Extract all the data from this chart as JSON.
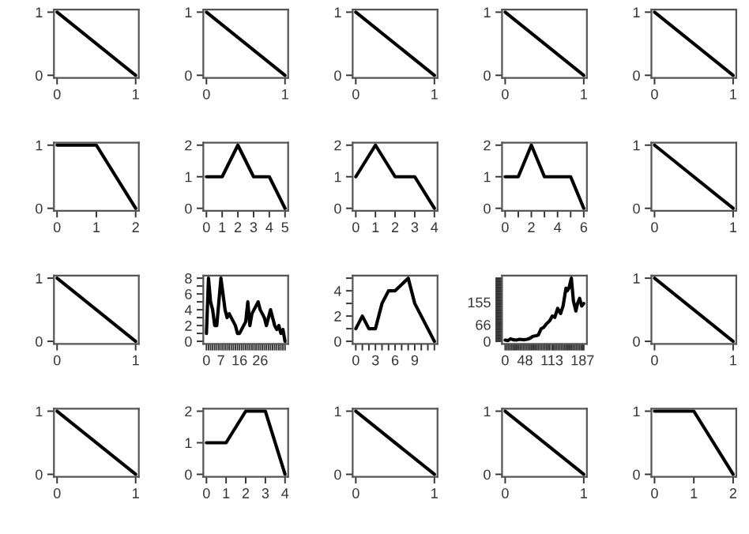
{
  "chart_data": [
    {
      "type": "line",
      "x": [
        0,
        1
      ],
      "values": [
        1,
        0
      ],
      "color": "#000000",
      "xlim": [
        -0.04,
        1.04
      ],
      "ylim": [
        -0.04,
        1.04
      ],
      "xticks": [
        0,
        1
      ],
      "yticks": [
        0,
        1
      ]
    },
    {
      "type": "line",
      "x": [
        0,
        1
      ],
      "values": [
        1,
        0
      ],
      "color": "#000000",
      "xlim": [
        -0.04,
        1.04
      ],
      "ylim": [
        -0.04,
        1.04
      ],
      "xticks": [
        0,
        1
      ],
      "yticks": [
        0,
        1
      ]
    },
    {
      "type": "line",
      "x": [
        0,
        1
      ],
      "values": [
        1,
        0
      ],
      "color": "#000000",
      "xlim": [
        -0.04,
        1.04
      ],
      "ylim": [
        -0.04,
        1.04
      ],
      "xticks": [
        0,
        1
      ],
      "yticks": [
        0,
        1
      ]
    },
    {
      "type": "line",
      "x": [
        0,
        1
      ],
      "values": [
        1,
        0
      ],
      "color": "#000000",
      "xlim": [
        -0.04,
        1.04
      ],
      "ylim": [
        -0.04,
        1.04
      ],
      "xticks": [
        0,
        1
      ],
      "yticks": [
        0,
        1
      ]
    },
    {
      "type": "line",
      "x": [
        0,
        1
      ],
      "values": [
        1,
        0
      ],
      "color": "#000000",
      "xlim": [
        -0.04,
        1.04
      ],
      "ylim": [
        -0.04,
        1.04
      ],
      "xticks": [
        0,
        1
      ],
      "yticks": [
        0,
        1
      ]
    },
    {
      "type": "line",
      "x": [
        0,
        1,
        2
      ],
      "values": [
        1,
        1,
        0
      ],
      "color": "#000000",
      "xlim": [
        -0.08,
        2.08
      ],
      "ylim": [
        -0.04,
        1.04
      ],
      "xticks": [
        0,
        1,
        2
      ],
      "yticks": [
        0,
        1
      ]
    },
    {
      "type": "line",
      "x": [
        0,
        1,
        2,
        3,
        4,
        5
      ],
      "values": [
        1,
        1,
        2,
        1,
        1,
        0
      ],
      "color": "#000000",
      "xlim": [
        -0.2,
        5.2
      ],
      "ylim": [
        -0.08,
        2.08
      ],
      "xticks": [
        0,
        1,
        2,
        3,
        4,
        5
      ],
      "yticks": [
        0,
        1,
        2
      ]
    },
    {
      "type": "line",
      "x": [
        0,
        1,
        2,
        3,
        4
      ],
      "values": [
        1,
        2,
        1,
        1,
        0
      ],
      "color": "#000000",
      "xlim": [
        -0.16,
        4.16
      ],
      "ylim": [
        -0.08,
        2.08
      ],
      "xticks": [
        0,
        1,
        2,
        3,
        4
      ],
      "yticks": [
        0,
        1,
        2
      ]
    },
    {
      "type": "line",
      "x": [
        0,
        1,
        2,
        3,
        4,
        5,
        6
      ],
      "values": [
        1,
        1,
        2,
        1,
        1,
        1,
        0
      ],
      "color": "#000000",
      "xlim": [
        -0.24,
        6.24
      ],
      "ylim": [
        -0.08,
        2.08
      ],
      "xticks": [
        0,
        {
          "value": 1,
          "label": null
        },
        2,
        {
          "value": 3,
          "label": null
        },
        4,
        {
          "value": 5,
          "label": null
        },
        6
      ],
      "yticks": [
        0,
        1,
        2
      ]
    },
    {
      "type": "line",
      "x": [
        0,
        1
      ],
      "values": [
        1,
        0
      ],
      "color": "#000000",
      "xlim": [
        -0.04,
        1.04
      ],
      "ylim": [
        -0.04,
        1.04
      ],
      "xticks": [
        0,
        1
      ],
      "yticks": [
        0,
        1
      ]
    },
    {
      "type": "line",
      "x": [
        0,
        1
      ],
      "values": [
        1,
        0
      ],
      "color": "#000000",
      "xlim": [
        -0.04,
        1.04
      ],
      "ylim": [
        -0.04,
        1.04
      ],
      "xticks": [
        0,
        1
      ],
      "yticks": [
        0,
        1
      ]
    },
    {
      "type": "line",
      "x": [
        0,
        1,
        2,
        3,
        4,
        5,
        6,
        7,
        8,
        9,
        10,
        11,
        12,
        13,
        14,
        15,
        16,
        17,
        18,
        19,
        20,
        21,
        22,
        23,
        24,
        25,
        26,
        27,
        28,
        29,
        30,
        31,
        32,
        33,
        34,
        35,
        36,
        37,
        38
      ],
      "values": [
        1,
        8,
        5,
        4,
        2,
        2,
        5,
        8,
        6,
        4,
        3,
        3.5,
        3,
        2.5,
        2,
        1,
        1,
        1.5,
        2,
        2.5,
        5,
        2,
        3.5,
        4,
        4.5,
        5,
        4,
        3.5,
        3,
        2,
        3,
        4,
        3,
        2,
        1.5,
        2,
        1,
        1.5,
        0
      ],
      "color": "#000000",
      "xlim": [
        -1.52,
        39.52
      ],
      "ylim": [
        -0.32,
        8.32
      ],
      "xticks": [
        0,
        {
          "value": 1,
          "label": null
        },
        {
          "value": 2,
          "label": null
        },
        {
          "value": 3,
          "label": null
        },
        {
          "value": 4,
          "label": null
        },
        {
          "value": 5,
          "label": null
        },
        {
          "value": 6,
          "label": null
        },
        7,
        {
          "value": 8,
          "label": null
        },
        {
          "value": 9,
          "label": null
        },
        {
          "value": 10,
          "label": null
        },
        {
          "value": 11,
          "label": null
        },
        {
          "value": 12,
          "label": null
        },
        {
          "value": 13,
          "label": null
        },
        {
          "value": 14,
          "label": null
        },
        {
          "value": 15,
          "label": null
        },
        16,
        {
          "value": 17,
          "label": null
        },
        {
          "value": 18,
          "label": null
        },
        {
          "value": 19,
          "label": null
        },
        {
          "value": 20,
          "label": null
        },
        {
          "value": 21,
          "label": null
        },
        {
          "value": 22,
          "label": null
        },
        {
          "value": 23,
          "label": null
        },
        {
          "value": 24,
          "label": null
        },
        {
          "value": 25,
          "label": null
        },
        26,
        {
          "value": 27,
          "label": null
        },
        {
          "value": 28,
          "label": null
        },
        {
          "value": 29,
          "label": null
        },
        {
          "value": 30,
          "label": null
        },
        {
          "value": 31,
          "label": null
        },
        {
          "value": 32,
          "label": null
        },
        {
          "value": 33,
          "label": null
        },
        {
          "value": 34,
          "label": null
        },
        {
          "value": 35,
          "label": null
        },
        {
          "value": 36,
          "label": null
        },
        {
          "value": 37,
          "label": null
        },
        {
          "value": 38,
          "label": null
        }
      ],
      "yticks": [
        0,
        {
          "value": 1,
          "label": null
        },
        2,
        {
          "value": 3,
          "label": null
        },
        4,
        {
          "value": 5,
          "label": null
        },
        6,
        {
          "value": 7,
          "label": null
        },
        8
      ]
    },
    {
      "type": "line",
      "x": [
        0,
        1,
        2,
        3,
        4,
        5,
        6,
        7,
        8,
        9,
        10,
        11,
        12
      ],
      "values": [
        1,
        2,
        1,
        1,
        3,
        4,
        4,
        4.5,
        5,
        3,
        2,
        1,
        0
      ],
      "color": "#000000",
      "xlim": [
        -0.48,
        12.48
      ],
      "ylim": [
        -0.2,
        5.2
      ],
      "xticks": [
        0,
        {
          "value": 1,
          "label": null
        },
        {
          "value": 2,
          "label": null
        },
        3,
        {
          "value": 4,
          "label": null
        },
        {
          "value": 5,
          "label": null
        },
        6,
        {
          "value": 7,
          "label": null
        },
        {
          "value": 8,
          "label": null
        },
        9,
        {
          "value": 10,
          "label": null
        },
        {
          "value": 11,
          "label": null
        },
        {
          "value": 12,
          "label": null
        }
      ],
      "yticks": [
        0,
        {
          "value": 1,
          "label": null
        },
        2,
        {
          "value": 3,
          "label": null
        },
        4,
        {
          "value": 5,
          "label": null
        }
      ]
    },
    {
      "type": "line",
      "x": [
        0,
        7,
        13,
        20,
        27,
        35,
        45,
        53,
        60,
        67,
        75,
        80,
        87,
        93,
        100,
        107,
        114,
        120,
        127,
        134,
        140,
        147,
        150,
        154,
        160,
        165,
        171,
        175,
        180,
        185,
        190
      ],
      "values": [
        5,
        3,
        10,
        6,
        5,
        8,
        6,
        8,
        12,
        20,
        22,
        25,
        50,
        55,
        70,
        80,
        100,
        95,
        130,
        110,
        140,
        210,
        200,
        210,
        250,
        160,
        120,
        150,
        170,
        140,
        150
      ],
      "color": "#000000",
      "xlim": [
        -7.6,
        197.6
      ],
      "ylim": [
        -10,
        260
      ],
      "xticks": [
        0,
        {
          "value": 4,
          "label": null
        },
        {
          "value": 8,
          "label": null
        },
        {
          "value": 12,
          "label": null
        },
        {
          "value": 16,
          "label": null
        },
        {
          "value": 20,
          "label": null
        },
        {
          "value": 24,
          "label": null
        },
        {
          "value": 28,
          "label": null
        },
        {
          "value": 32,
          "label": null
        },
        {
          "value": 36,
          "label": null
        },
        {
          "value": 40,
          "label": null
        },
        {
          "value": 44,
          "label": null
        },
        48,
        {
          "value": 52,
          "label": null
        },
        {
          "value": 56,
          "label": null
        },
        {
          "value": 60,
          "label": null
        },
        {
          "value": 64,
          "label": null
        },
        {
          "value": 68,
          "label": null
        },
        {
          "value": 72,
          "label": null
        },
        {
          "value": 76,
          "label": null
        },
        {
          "value": 80,
          "label": null
        },
        {
          "value": 84,
          "label": null
        },
        {
          "value": 88,
          "label": null
        },
        {
          "value": 92,
          "label": null
        },
        {
          "value": 96,
          "label": null
        },
        {
          "value": 100,
          "label": null
        },
        {
          "value": 104,
          "label": null
        },
        {
          "value": 108,
          "label": null
        },
        113,
        {
          "value": 116,
          "label": null
        },
        {
          "value": 120,
          "label": null
        },
        {
          "value": 124,
          "label": null
        },
        {
          "value": 128,
          "label": null
        },
        {
          "value": 132,
          "label": null
        },
        {
          "value": 136,
          "label": null
        },
        {
          "value": 140,
          "label": null
        },
        {
          "value": 144,
          "label": null
        },
        {
          "value": 148,
          "label": null
        },
        {
          "value": 152,
          "label": null
        },
        {
          "value": 156,
          "label": null
        },
        {
          "value": 160,
          "label": null
        },
        {
          "value": 164,
          "label": null
        },
        {
          "value": 168,
          "label": null
        },
        {
          "value": 172,
          "label": null
        },
        {
          "value": 176,
          "label": null
        },
        {
          "value": 180,
          "label": null
        },
        {
          "value": 184,
          "label": null
        },
        187,
        {
          "value": 190,
          "label": null
        }
      ],
      "yticks": [
        0,
        {
          "value": 5,
          "label": null
        },
        {
          "value": 10,
          "label": null
        },
        {
          "value": 15,
          "label": null
        },
        {
          "value": 20,
          "label": null
        },
        {
          "value": 25,
          "label": null
        },
        {
          "value": 30,
          "label": null
        },
        {
          "value": 35,
          "label": null
        },
        {
          "value": 40,
          "label": null
        },
        {
          "value": 45,
          "label": null
        },
        {
          "value": 50,
          "label": null
        },
        {
          "value": 55,
          "label": null
        },
        {
          "value": 60,
          "label": null
        },
        66,
        {
          "value": 70,
          "label": null
        },
        {
          "value": 75,
          "label": null
        },
        {
          "value": 80,
          "label": null
        },
        {
          "value": 85,
          "label": null
        },
        {
          "value": 90,
          "label": null
        },
        {
          "value": 95,
          "label": null
        },
        {
          "value": 100,
          "label": null
        },
        {
          "value": 105,
          "label": null
        },
        {
          "value": 110,
          "label": null
        },
        {
          "value": 115,
          "label": null
        },
        {
          "value": 120,
          "label": null
        },
        {
          "value": 125,
          "label": null
        },
        {
          "value": 130,
          "label": null
        },
        {
          "value": 135,
          "label": null
        },
        {
          "value": 140,
          "label": null
        },
        {
          "value": 145,
          "label": null
        },
        {
          "value": 150,
          "label": null
        },
        155,
        {
          "value": 160,
          "label": null
        },
        {
          "value": 165,
          "label": null
        },
        {
          "value": 170,
          "label": null
        },
        {
          "value": 175,
          "label": null
        },
        {
          "value": 180,
          "label": null
        },
        {
          "value": 185,
          "label": null
        },
        {
          "value": 190,
          "label": null
        },
        {
          "value": 195,
          "label": null
        },
        {
          "value": 200,
          "label": null
        },
        {
          "value": 205,
          "label": null
        },
        {
          "value": 210,
          "label": null
        },
        {
          "value": 215,
          "label": null
        },
        {
          "value": 220,
          "label": null
        },
        {
          "value": 225,
          "label": null
        },
        {
          "value": 230,
          "label": null
        },
        {
          "value": 235,
          "label": null
        },
        {
          "value": 240,
          "label": null
        },
        {
          "value": 245,
          "label": null
        },
        {
          "value": 250,
          "label": null
        }
      ]
    },
    {
      "type": "line",
      "x": [
        0,
        1
      ],
      "values": [
        1,
        0
      ],
      "color": "#000000",
      "xlim": [
        -0.04,
        1.04
      ],
      "ylim": [
        -0.04,
        1.04
      ],
      "xticks": [
        0,
        1
      ],
      "yticks": [
        0,
        1
      ]
    },
    {
      "type": "line",
      "x": [
        0,
        1
      ],
      "values": [
        1,
        0
      ],
      "color": "#000000",
      "xlim": [
        -0.04,
        1.04
      ],
      "ylim": [
        -0.04,
        1.04
      ],
      "xticks": [
        0,
        1
      ],
      "yticks": [
        0,
        1
      ]
    },
    {
      "type": "line",
      "x": [
        0,
        1,
        2,
        3,
        4
      ],
      "values": [
        1,
        1,
        2,
        2,
        0
      ],
      "color": "#000000",
      "xlim": [
        -0.16,
        4.16
      ],
      "ylim": [
        -0.08,
        2.08
      ],
      "xticks": [
        0,
        1,
        2,
        3,
        4
      ],
      "yticks": [
        0,
        1,
        2
      ]
    },
    {
      "type": "line",
      "x": [
        0,
        1
      ],
      "values": [
        1,
        0
      ],
      "color": "#000000",
      "xlim": [
        -0.04,
        1.04
      ],
      "ylim": [
        -0.04,
        1.04
      ],
      "xticks": [
        0,
        1
      ],
      "yticks": [
        0,
        1
      ]
    },
    {
      "type": "line",
      "x": [
        0,
        1
      ],
      "values": [
        1,
        0
      ],
      "color": "#000000",
      "xlim": [
        -0.04,
        1.04
      ],
      "ylim": [
        -0.04,
        1.04
      ],
      "xticks": [
        0,
        1
      ],
      "yticks": [
        0,
        1
      ]
    },
    {
      "type": "line",
      "x": [
        0,
        1,
        2
      ],
      "values": [
        1,
        1,
        0
      ],
      "color": "#000000",
      "xlim": [
        -0.08,
        2.08
      ],
      "ylim": [
        -0.04,
        1.04
      ],
      "xticks": [
        0,
        1,
        2
      ],
      "yticks": [
        0,
        1
      ]
    }
  ]
}
